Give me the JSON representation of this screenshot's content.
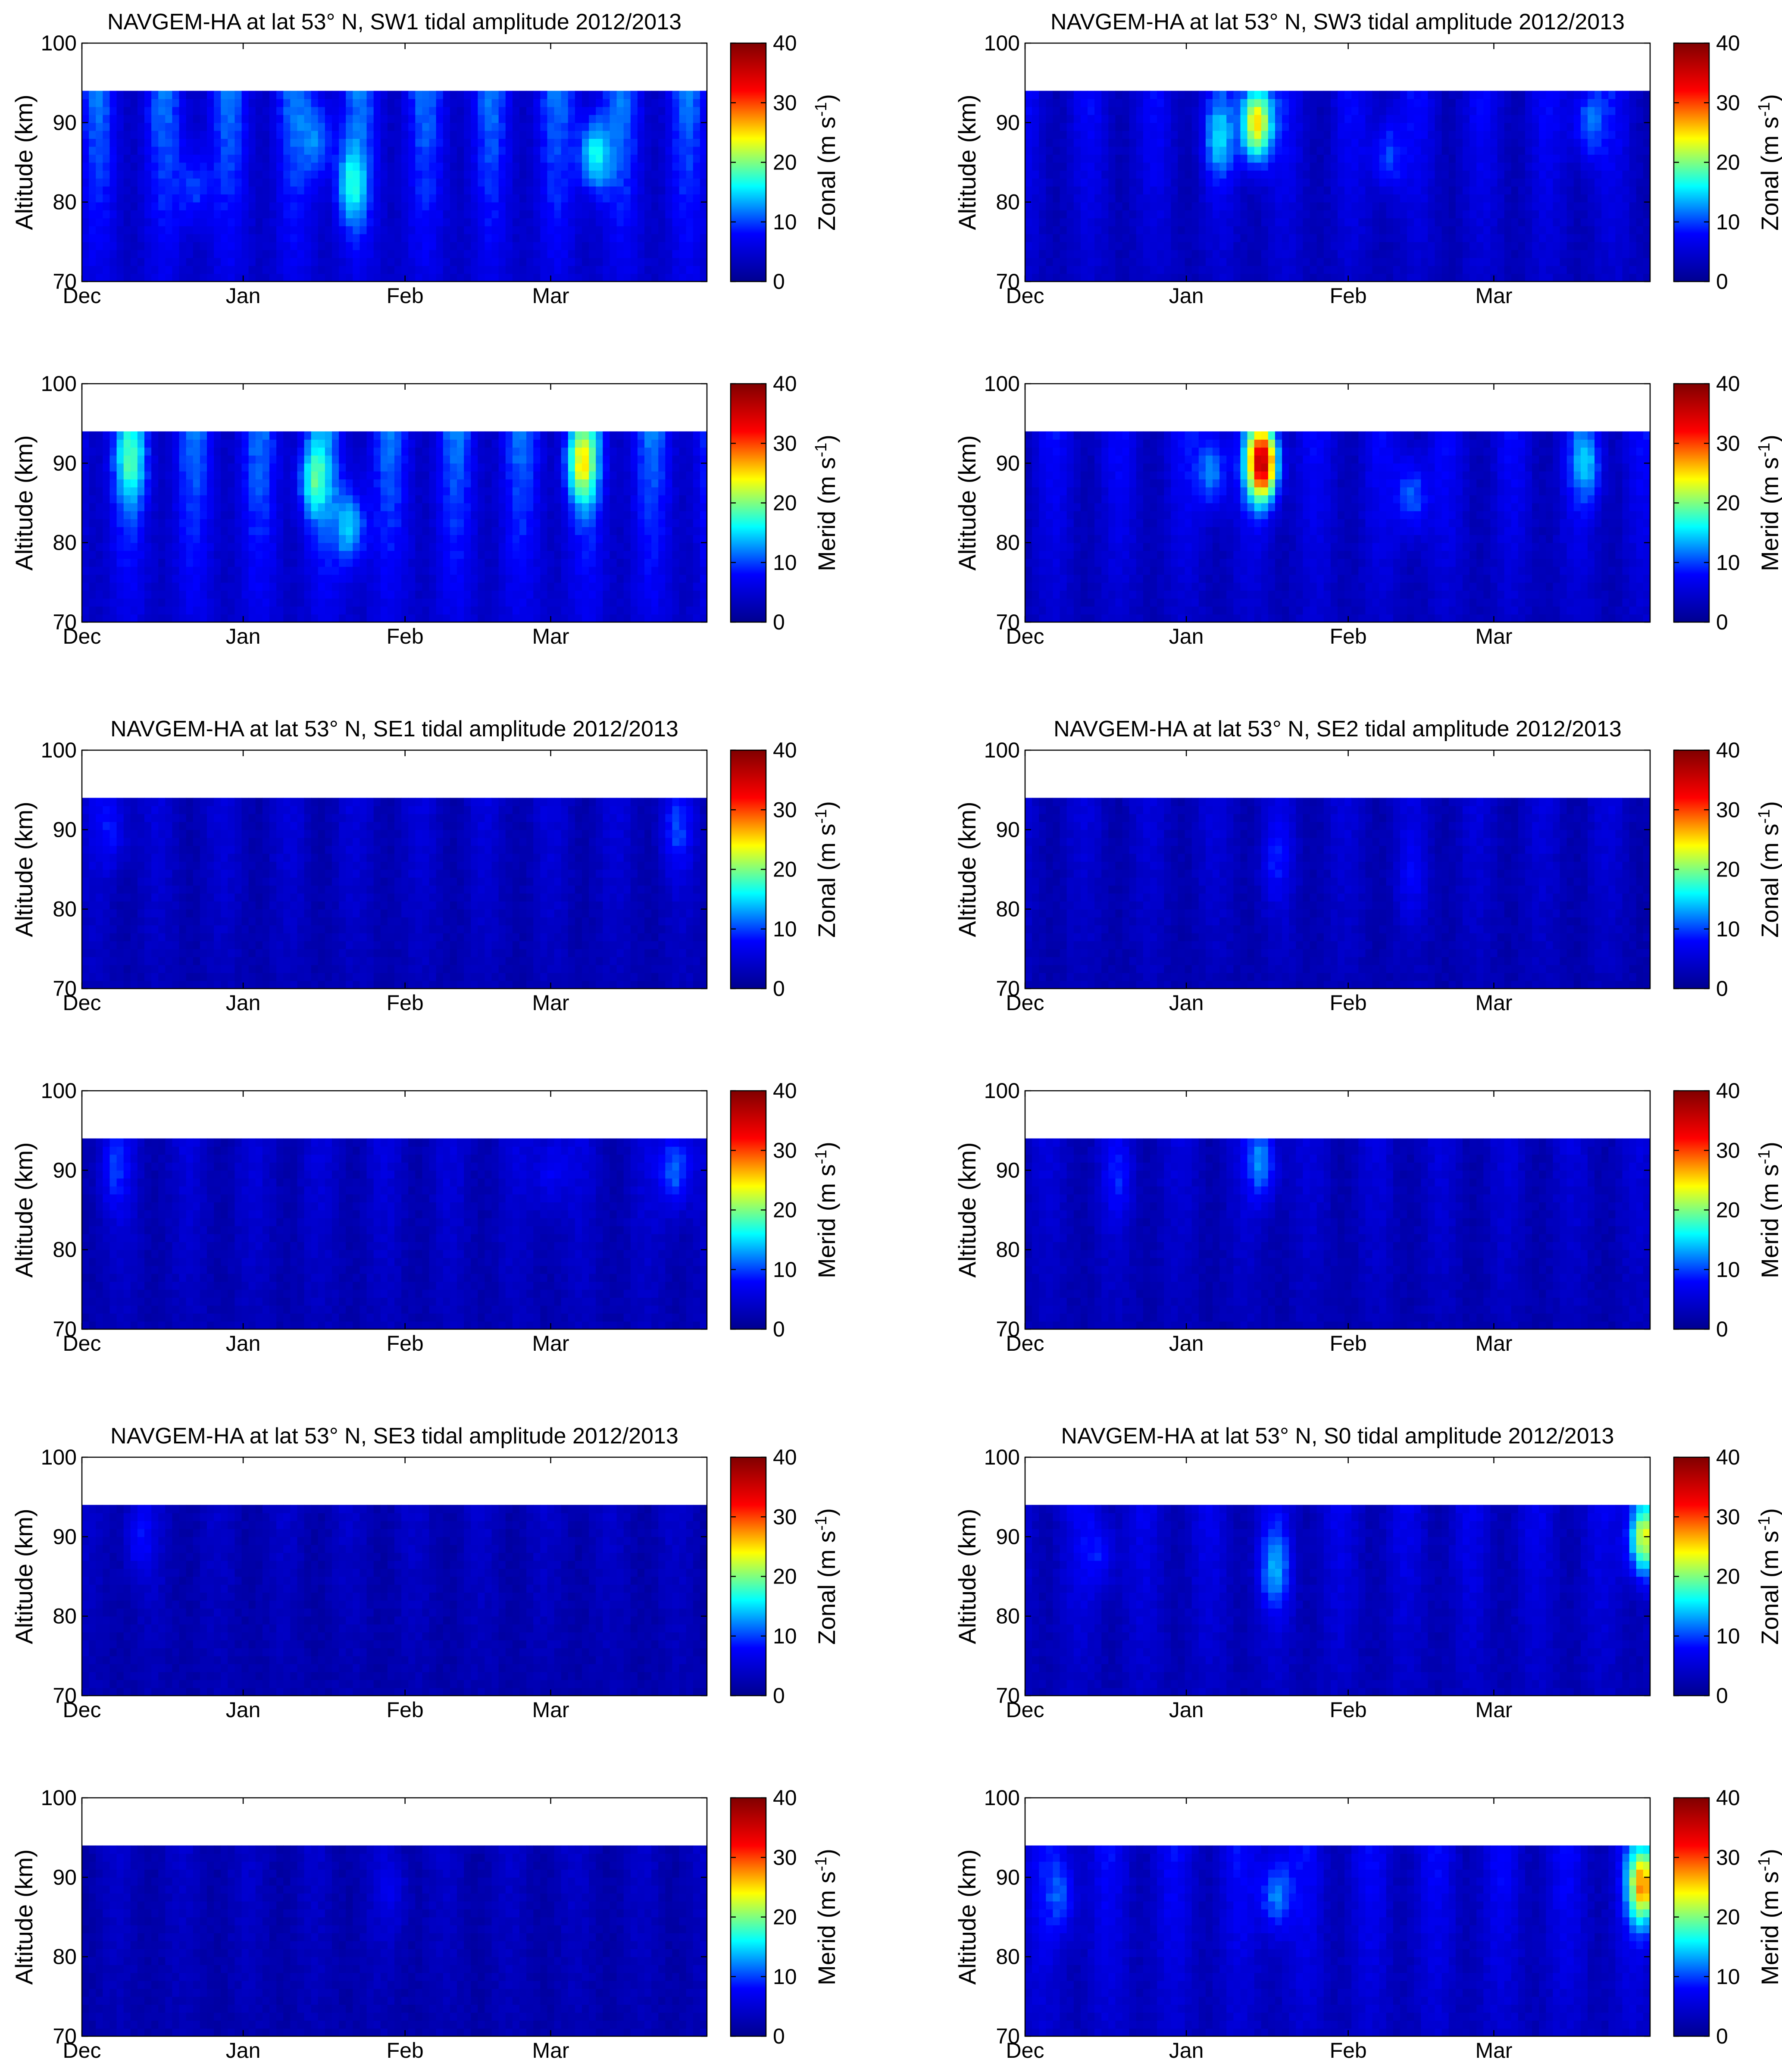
{
  "figure": {
    "description_free": true,
    "colormap": "jet",
    "colormap_stops": [
      "#00008f",
      "#0000ff",
      "#00ffff",
      "#ffff00",
      "#ff0000",
      "#800000"
    ]
  },
  "chart_data": [
    {
      "type": "heatmap",
      "title": "NAVGEM-HA at lat 53° N, SW1 tidal amplitude 2012/2013",
      "ylabel": "Altitude  (km)",
      "xticklabels": [
        "Dec",
        "Jan",
        "Feb",
        "Mar"
      ],
      "yticklabels": [
        "70",
        "80",
        "90",
        "100"
      ],
      "ylim": [
        70,
        100
      ],
      "data_top_km": 94,
      "colorbar": {
        "label": "Zonal",
        "units": "(m s",
        "units_sup": "-1",
        "units_close": ")",
        "ticks": [
          "0",
          "10",
          "20",
          "30",
          "40"
        ],
        "range": [
          0,
          40
        ]
      },
      "field": {
        "base": 9,
        "hotspots": [
          {
            "date": 0.82,
            "alt": 86,
            "amp": 12
          },
          {
            "date": 0.43,
            "alt": 82,
            "amp": 9
          },
          {
            "date": 0.38,
            "alt": 88,
            "amp": 7
          },
          {
            "date": 0.18,
            "alt": 82,
            "amp": 6
          }
        ]
      }
    },
    {
      "type": "heatmap",
      "title": "NAVGEM-HA at lat 53° N, SW3 tidal amplitude 2012/2013",
      "ylabel": "Altitude  (km)",
      "xticklabels": [
        "Dec",
        "Jan",
        "Feb",
        "Mar"
      ],
      "yticklabels": [
        "70",
        "80",
        "90",
        "100"
      ],
      "ylim": [
        70,
        100
      ],
      "data_top_km": 94,
      "colorbar": {
        "label": "Zonal",
        "units": "(m s",
        "units_sup": "-1",
        "units_close": ")",
        "ticks": [
          "0",
          "10",
          "20",
          "30",
          "40"
        ],
        "range": [
          0,
          40
        ]
      },
      "field": {
        "base": 6,
        "hotspots": [
          {
            "date": 0.37,
            "alt": 90,
            "amp": 22
          },
          {
            "date": 0.31,
            "alt": 88,
            "amp": 8
          },
          {
            "date": 0.58,
            "alt": 86,
            "amp": 7
          },
          {
            "date": 0.9,
            "alt": 90,
            "amp": 8
          }
        ]
      }
    },
    {
      "type": "heatmap",
      "title": "",
      "ylabel": "Altitude  (km)",
      "xticklabels": [
        "Dec",
        "Jan",
        "Feb",
        "Mar"
      ],
      "yticklabels": [
        "70",
        "80",
        "90",
        "100"
      ],
      "ylim": [
        70,
        100
      ],
      "data_top_km": 94,
      "colorbar": {
        "label": "Merid",
        "units": "(m s",
        "units_sup": "-1",
        "units_close": ")",
        "ticks": [
          "0",
          "10",
          "20",
          "30",
          "40"
        ],
        "range": [
          0,
          40
        ]
      },
      "field": {
        "base": 9,
        "hotspots": [
          {
            "date": 0.8,
            "alt": 90,
            "amp": 14
          },
          {
            "date": 0.37,
            "alt": 88,
            "amp": 10
          },
          {
            "date": 0.43,
            "alt": 82,
            "amp": 10
          },
          {
            "date": 0.08,
            "alt": 90,
            "amp": 8
          }
        ]
      }
    },
    {
      "type": "heatmap",
      "title": "",
      "ylabel": "Altitude  (km)",
      "xticklabels": [
        "Dec",
        "Jan",
        "Feb",
        "Mar"
      ],
      "yticklabels": [
        "70",
        "80",
        "90",
        "100"
      ],
      "ylim": [
        70,
        100
      ],
      "data_top_km": 94,
      "colorbar": {
        "label": "Merid",
        "units": "(m s",
        "units_sup": "-1",
        "units_close": ")",
        "ticks": [
          "0",
          "10",
          "20",
          "30",
          "40"
        ],
        "range": [
          0,
          40
        ]
      },
      "field": {
        "base": 6,
        "hotspots": [
          {
            "date": 0.38,
            "alt": 90,
            "amp": 30
          },
          {
            "date": 0.3,
            "alt": 89,
            "amp": 9
          },
          {
            "date": 0.62,
            "alt": 86,
            "amp": 8
          },
          {
            "date": 0.9,
            "alt": 90,
            "amp": 8
          }
        ]
      }
    },
    {
      "type": "heatmap",
      "title": "NAVGEM-HA at lat 53° N, SE1 tidal amplitude 2012/2013",
      "ylabel": "Altitude  (km)",
      "xticklabels": [
        "Dec",
        "Jan",
        "Feb",
        "Mar"
      ],
      "yticklabels": [
        "70",
        "80",
        "90",
        "100"
      ],
      "ylim": [
        70,
        100
      ],
      "data_top_km": 94,
      "colorbar": {
        "label": "Zonal",
        "units": "(m s",
        "units_sup": "-1",
        "units_close": ")",
        "ticks": [
          "0",
          "10",
          "20",
          "30",
          "40"
        ],
        "range": [
          0,
          40
        ]
      },
      "field": {
        "base": 4,
        "hotspots": [
          {
            "date": 0.05,
            "alt": 90,
            "amp": 5
          },
          {
            "date": 0.95,
            "alt": 90,
            "amp": 5
          }
        ]
      }
    },
    {
      "type": "heatmap",
      "title": "NAVGEM-HA at lat 53° N, SE2 tidal amplitude 2012/2013",
      "ylabel": "Altitude  (km)",
      "xticklabels": [
        "Dec",
        "Jan",
        "Feb",
        "Mar"
      ],
      "yticklabels": [
        "70",
        "80",
        "90",
        "100"
      ],
      "ylim": [
        70,
        100
      ],
      "data_top_km": 94,
      "colorbar": {
        "label": "Zonal",
        "units": "(m s",
        "units_sup": "-1",
        "units_close": ")",
        "ticks": [
          "0",
          "10",
          "20",
          "30",
          "40"
        ],
        "range": [
          0,
          40
        ]
      },
      "field": {
        "base": 4,
        "hotspots": [
          {
            "date": 0.4,
            "alt": 86,
            "amp": 4
          },
          {
            "date": 0.62,
            "alt": 84,
            "amp": 3
          }
        ]
      }
    },
    {
      "type": "heatmap",
      "title": "",
      "ylabel": "Altitude  (km)",
      "xticklabels": [
        "Dec",
        "Jan",
        "Feb",
        "Mar"
      ],
      "yticklabels": [
        "70",
        "80",
        "90",
        "100"
      ],
      "ylim": [
        70,
        100
      ],
      "data_top_km": 94,
      "colorbar": {
        "label": "Merid",
        "units": "(m s",
        "units_sup": "-1",
        "units_close": ")",
        "ticks": [
          "0",
          "10",
          "20",
          "30",
          "40"
        ],
        "range": [
          0,
          40
        ]
      },
      "field": {
        "base": 4,
        "hotspots": [
          {
            "date": 0.95,
            "alt": 90,
            "amp": 9
          },
          {
            "date": 0.75,
            "alt": 90,
            "amp": 5
          },
          {
            "date": 0.05,
            "alt": 90,
            "amp": 5
          }
        ]
      }
    },
    {
      "type": "heatmap",
      "title": "",
      "ylabel": "Altitude  (km)",
      "xticklabels": [
        "Dec",
        "Jan",
        "Feb",
        "Mar"
      ],
      "yticklabels": [
        "70",
        "80",
        "90",
        "100"
      ],
      "ylim": [
        70,
        100
      ],
      "data_top_km": 94,
      "colorbar": {
        "label": "Merid",
        "units": "(m s",
        "units_sup": "-1",
        "units_close": ")",
        "ticks": [
          "0",
          "10",
          "20",
          "30",
          "40"
        ],
        "range": [
          0,
          40
        ]
      },
      "field": {
        "base": 4,
        "hotspots": [
          {
            "date": 0.38,
            "alt": 91,
            "amp": 9
          },
          {
            "date": 0.15,
            "alt": 89,
            "amp": 4
          }
        ]
      }
    },
    {
      "type": "heatmap",
      "title": "NAVGEM-HA at lat 53° N, SE3 tidal amplitude 2012/2013",
      "ylabel": "Altitude  (km)",
      "xticklabels": [
        "Dec",
        "Jan",
        "Feb",
        "Mar"
      ],
      "yticklabels": [
        "70",
        "80",
        "90",
        "100"
      ],
      "ylim": [
        70,
        100
      ],
      "data_top_km": 94,
      "colorbar": {
        "label": "Zonal",
        "units": "(m s",
        "units_sup": "-1",
        "units_close": ")",
        "ticks": [
          "0",
          "10",
          "20",
          "30",
          "40"
        ],
        "range": [
          0,
          40
        ]
      },
      "field": {
        "base": 3,
        "hotspots": [
          {
            "date": 0.09,
            "alt": 90,
            "amp": 5
          }
        ]
      }
    },
    {
      "type": "heatmap",
      "title": "NAVGEM-HA at lat 53° N, S0 tidal amplitude 2012/2013",
      "ylabel": "Altitude  (km)",
      "xticklabels": [
        "Dec",
        "Jan",
        "Feb",
        "Mar"
      ],
      "yticklabels": [
        "70",
        "80",
        "90",
        "100"
      ],
      "ylim": [
        70,
        100
      ],
      "data_top_km": 94,
      "colorbar": {
        "label": "Zonal",
        "units": "(m s",
        "units_sup": "-1",
        "units_close": ")",
        "ticks": [
          "0",
          "10",
          "20",
          "30",
          "40"
        ],
        "range": [
          0,
          40
        ]
      },
      "field": {
        "base": 5,
        "hotspots": [
          {
            "date": 0.99,
            "alt": 90,
            "amp": 20
          },
          {
            "date": 0.4,
            "alt": 86,
            "amp": 8
          },
          {
            "date": 0.12,
            "alt": 88,
            "amp": 5
          }
        ]
      }
    },
    {
      "type": "heatmap",
      "title": "",
      "ylabel": "Altitude  (km)",
      "xticklabels": [
        "Dec",
        "Jan",
        "Feb",
        "Mar"
      ],
      "yticklabels": [
        "70",
        "80",
        "90",
        "100"
      ],
      "ylim": [
        70,
        100
      ],
      "data_top_km": 94,
      "colorbar": {
        "label": "Merid",
        "units": "(m s",
        "units_sup": "-1",
        "units_close": ")",
        "ticks": [
          "0",
          "10",
          "20",
          "30",
          "40"
        ],
        "range": [
          0,
          40
        ]
      },
      "field": {
        "base": 3,
        "hotspots": [
          {
            "date": 0.5,
            "alt": 88,
            "amp": 3
          }
        ]
      }
    },
    {
      "type": "heatmap",
      "title": "",
      "ylabel": "Altitude  (km)",
      "xticklabels": [
        "Dec",
        "Jan",
        "Feb",
        "Mar"
      ],
      "yticklabels": [
        "70",
        "80",
        "90",
        "100"
      ],
      "ylim": [
        70,
        100
      ],
      "data_top_km": 94,
      "colorbar": {
        "label": "Merid",
        "units": "(m s",
        "units_sup": "-1",
        "units_close": ")",
        "ticks": [
          "0",
          "10",
          "20",
          "30",
          "40"
        ],
        "range": [
          0,
          40
        ]
      },
      "field": {
        "base": 6,
        "hotspots": [
          {
            "date": 0.99,
            "alt": 89,
            "amp": 22
          },
          {
            "date": 0.4,
            "alt": 88,
            "amp": 9
          },
          {
            "date": 0.06,
            "alt": 88,
            "amp": 6
          }
        ]
      }
    }
  ]
}
